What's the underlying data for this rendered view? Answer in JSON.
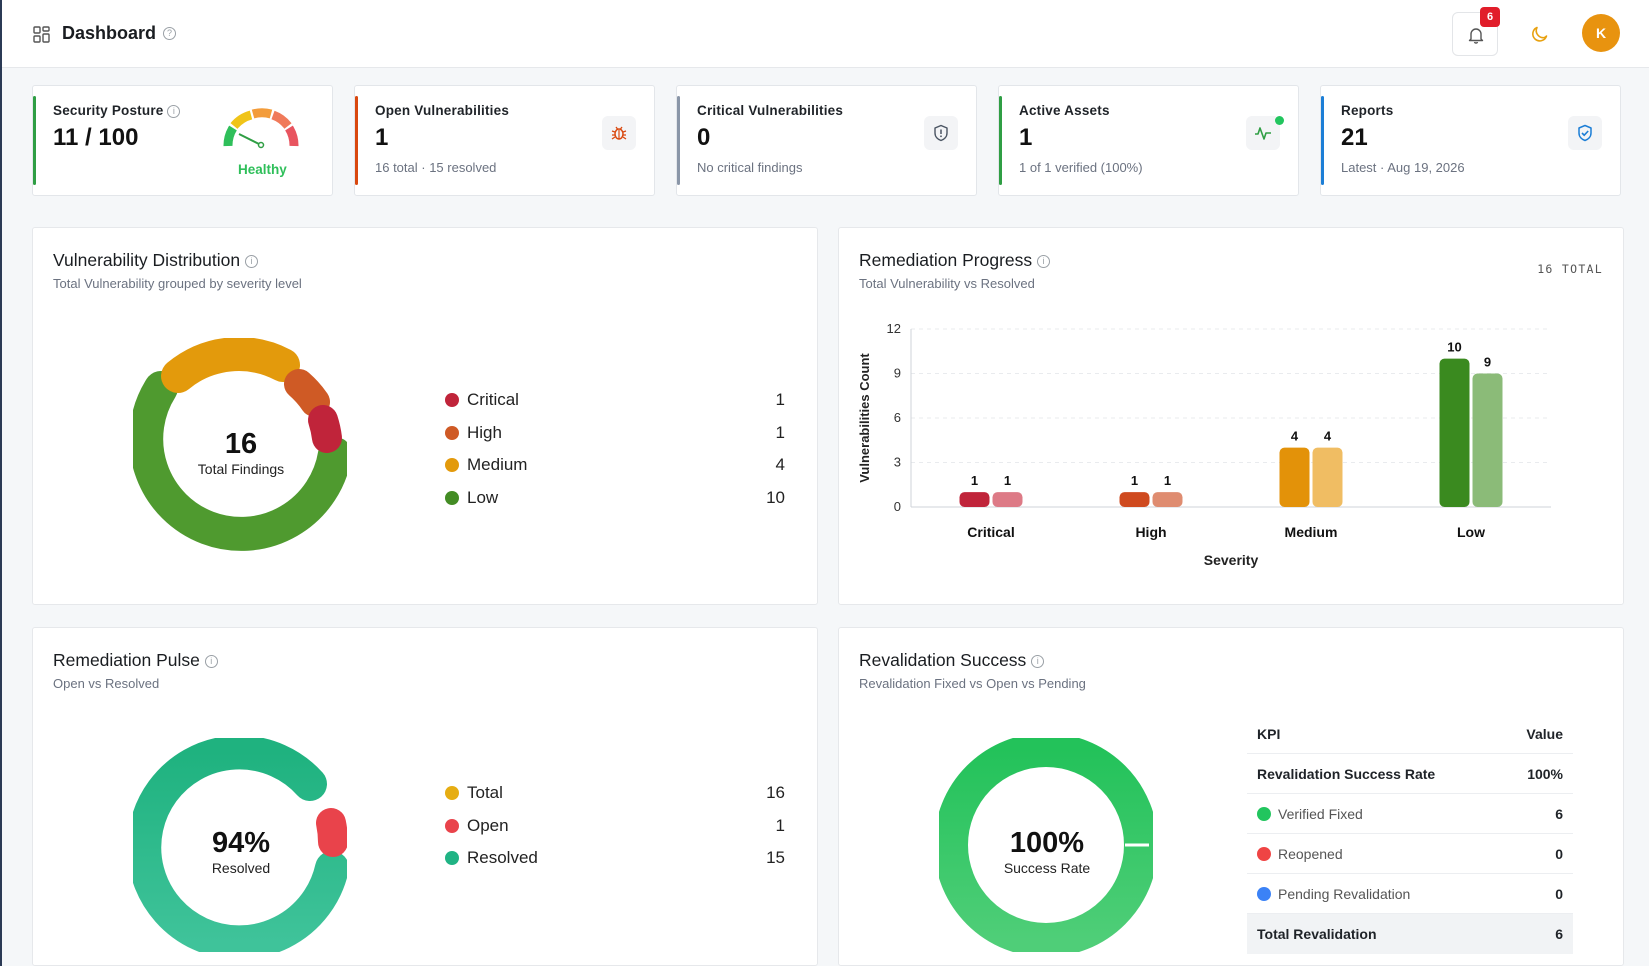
{
  "header": {
    "title": "Dashboard",
    "notifications": "6",
    "avatar_initial": "K"
  },
  "stats": [
    {
      "label": "Security Posture",
      "value": "11 / 100",
      "status": "Healthy"
    },
    {
      "label": "Open Vulnerabilities",
      "value": "1",
      "sub": "16 total · 15 resolved"
    },
    {
      "label": "Critical Vulnerabilities",
      "value": "0",
      "sub": "No critical findings"
    },
    {
      "label": "Active Assets",
      "value": "1",
      "sub": "1 of 1 verified (100%)"
    },
    {
      "label": "Reports",
      "value": "21",
      "sub": "Latest · Aug 19, 2026"
    }
  ],
  "distribution": {
    "title": "Vulnerability Distribution",
    "subtitle": "Total Vulnerability grouped by severity level",
    "center_value": "16",
    "center_label": "Total Findings",
    "items": [
      {
        "name": "Critical",
        "value": "1",
        "color": "#c0243a"
      },
      {
        "name": "High",
        "value": "1",
        "color": "#cf5a25"
      },
      {
        "name": "Medium",
        "value": "4",
        "color": "#e39a0c"
      },
      {
        "name": "Low",
        "value": "10",
        "color": "#438c24"
      }
    ]
  },
  "remediation": {
    "title": "Remediation Progress",
    "subtitle": "Total Vulnerability vs Resolved",
    "total_tag": "16 TOTAL"
  },
  "chart_data": {
    "type": "bar",
    "categories": [
      "Critical",
      "High",
      "Medium",
      "Low"
    ],
    "series": [
      {
        "values": [
          1,
          1,
          4,
          10
        ],
        "colors": [
          "#c0243a",
          "#cf4a1f",
          "#e39209",
          "#3a8a1f"
        ]
      },
      {
        "values": [
          1,
          1,
          4,
          9
        ],
        "colors": [
          "#dd7a86",
          "#df8c70",
          "#f0bd63",
          "#8bbb78"
        ]
      }
    ],
    "xlabel": "Severity",
    "ylabel": "Vulnerabilities Count",
    "ylim": [
      0,
      12
    ],
    "yticks": [
      0,
      3,
      6,
      9,
      12
    ]
  },
  "pulse": {
    "title": "Remediation Pulse",
    "subtitle": "Open vs Resolved",
    "center_value": "94%",
    "center_label": "Resolved",
    "items": [
      {
        "name": "Total",
        "value": "16",
        "color": "#e6ad12"
      },
      {
        "name": "Open",
        "value": "1",
        "color": "#e9434b"
      },
      {
        "name": "Resolved",
        "value": "15",
        "color": "#20b384"
      }
    ]
  },
  "revalidation": {
    "title": "Revalidation Success",
    "subtitle": "Revalidation Fixed vs Open vs Pending",
    "center_value": "100%",
    "center_label": "Success Rate",
    "kpi_header": "KPI",
    "value_header": "Value",
    "rate_label": "Revalidation Success Rate",
    "rate_value": "100%",
    "rows": [
      {
        "name": "Verified Fixed",
        "value": "6",
        "color": "#22c55e"
      },
      {
        "name": "Reopened",
        "value": "0",
        "color": "#ef4444"
      },
      {
        "name": "Pending Revalidation",
        "value": "0",
        "color": "#3b82f6"
      }
    ],
    "total_label": "Total Revalidation",
    "total_value": "6"
  }
}
